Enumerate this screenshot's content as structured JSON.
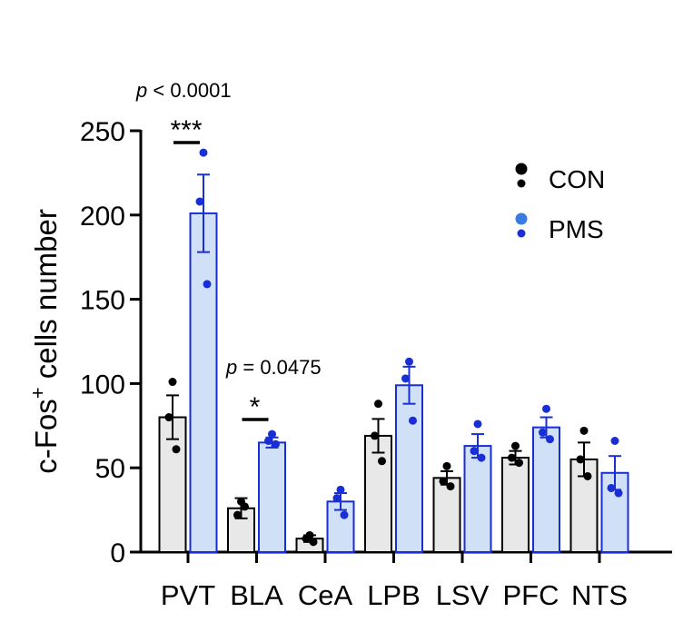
{
  "chart_data": {
    "type": "bar",
    "ylabel": "c-Fos",
    "ylabel_superscript": "+",
    "ylabel_suffix": " cells number",
    "ylim": [
      0,
      250
    ],
    "yticks": [
      "0",
      "50",
      "100",
      "150",
      "200",
      "250"
    ],
    "categories": [
      "PVT",
      "BLA",
      "CeA",
      "LPB",
      "LSV",
      "PFC",
      "NTS"
    ],
    "legend_position": "top-right",
    "series": [
      {
        "name": "CON",
        "color": "#000000",
        "fill": "#e8e8e8",
        "values": [
          80,
          26,
          8,
          69,
          44,
          56,
          55
        ],
        "sem": [
          13,
          6,
          2,
          10,
          4,
          4,
          10
        ],
        "points": [
          [
            101,
            80,
            61
          ],
          [
            30,
            22,
            27
          ],
          [
            10,
            8,
            6
          ],
          [
            88,
            69,
            54
          ],
          [
            51,
            42,
            39
          ],
          [
            63,
            56,
            53
          ],
          [
            72,
            55,
            45
          ]
        ]
      },
      {
        "name": "PMS",
        "color": "#1a2ed6",
        "fill": "#cfe0f7",
        "values": [
          201,
          65,
          30,
          99,
          63,
          74,
          47
        ],
        "sem": [
          23,
          3,
          5,
          11,
          7,
          6,
          10
        ],
        "points": [
          [
            237,
            208,
            159
          ],
          [
            70,
            66,
            64
          ],
          [
            37,
            32,
            22
          ],
          [
            113,
            103,
            78
          ],
          [
            76,
            60,
            56
          ],
          [
            85,
            71,
            67
          ],
          [
            66,
            38,
            35
          ]
        ]
      }
    ],
    "annotations": [
      {
        "category": "PVT",
        "stars": "***",
        "p_prefix": "p",
        "p_text": " < 0.0001"
      },
      {
        "category": "BLA",
        "stars": "*",
        "p_prefix": "p",
        "p_text": " = 0.0475"
      }
    ]
  }
}
